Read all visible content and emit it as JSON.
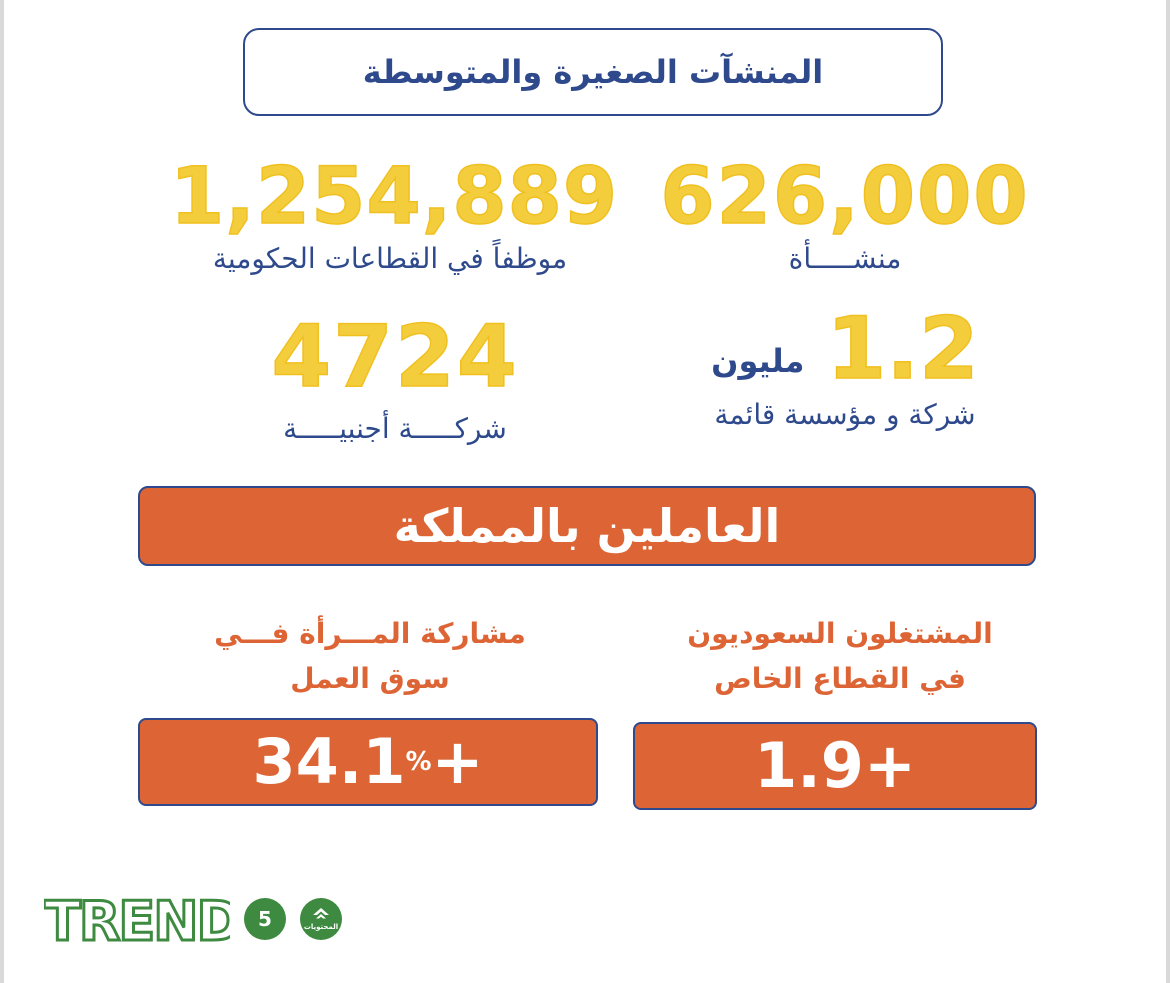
{
  "title": "المنشآت الصغيرة والمتوسطة",
  "stats": {
    "establishments": {
      "value": "626,000",
      "label": "منشـــــأة"
    },
    "gov_employees": {
      "value": "1,254,889",
      "label": "موظفاً في القطاعات الحكومية"
    },
    "existing_companies": {
      "value": "1.2",
      "unit": "مليون",
      "label": "شركة و مؤسسة قائمة"
    },
    "foreign_companies": {
      "value": "4724",
      "label": "شركـــــة أجنبيـــــة"
    }
  },
  "banner": "العاملين بالمملكة",
  "saudi_private": {
    "label_line1": "المشتغلون السعوديون",
    "label_line2": "في القطاع الخاص",
    "value": "1.9+"
  },
  "women_participation": {
    "label_line1": "مشاركة المـــرأة فـــي",
    "label_line2": "سوق العمل",
    "value": "34.1",
    "percent": "%",
    "plus": "+"
  },
  "footer": {
    "logo": "TREND",
    "page_number": "5",
    "contents_label": "المحتويات"
  },
  "colors": {
    "navy": "#2f4a8c",
    "yellow": "#f4cd3d",
    "orange": "#dd6535",
    "green": "#3d8a40"
  }
}
